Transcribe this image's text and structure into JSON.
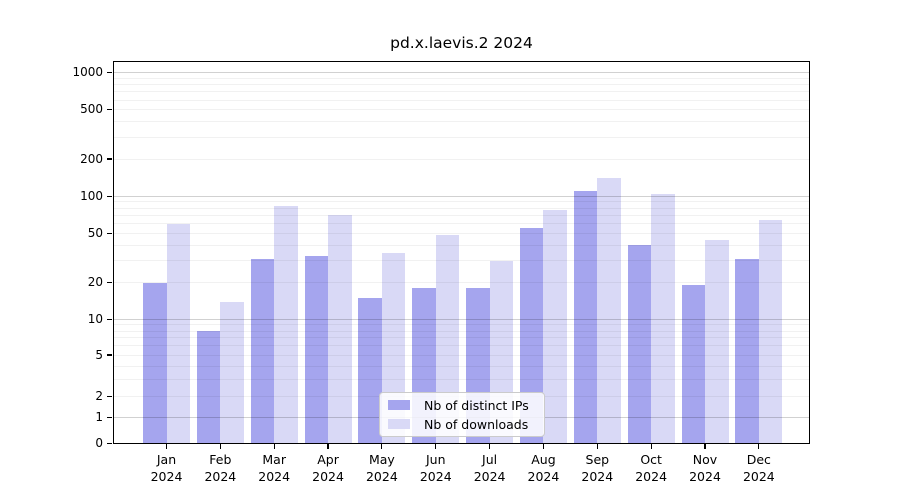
{
  "chart_data": {
    "type": "bar",
    "title": "pd.x.laevis.2 2024",
    "categories": [
      "Jan",
      "Feb",
      "Mar",
      "Apr",
      "May",
      "Jun",
      "Jul",
      "Aug",
      "Sep",
      "Oct",
      "Nov",
      "Dec"
    ],
    "x_tick_year": "2024",
    "series": [
      {
        "name": "Nb of distinct IPs",
        "color": "#a5a5ee",
        "values": [
          20,
          8,
          31,
          33,
          15,
          18,
          18,
          55,
          110,
          40,
          19,
          31
        ]
      },
      {
        "name": "Nb of downloads",
        "color": "#d9d9f6",
        "values": [
          60,
          14,
          84,
          70,
          35,
          49,
          30,
          78,
          140,
          105,
          44,
          64
        ]
      }
    ],
    "yticks": [
      0,
      1,
      2,
      5,
      10,
      20,
      50,
      100,
      200,
      500,
      1000
    ],
    "yscale": "asinh (symlog-like, linear width ~2)",
    "ylim": [
      0,
      1240
    ],
    "xlabel": "",
    "ylabel": "",
    "grid": {
      "major_at": [
        1,
        10,
        100,
        1000
      ],
      "minor_at": "2-9 within each decade",
      "orientation": "horizontal"
    },
    "legend_position": "inside lower-center"
  },
  "colors": {
    "background": "#ffffff",
    "bar_distinct_ips": "#a5a5ee",
    "bar_downloads": "#d9d9f6",
    "grid_major": "#cdcdcd",
    "grid_minor": "#ececec",
    "axis": "#000000",
    "legend_border": "#cbcbcb"
  }
}
